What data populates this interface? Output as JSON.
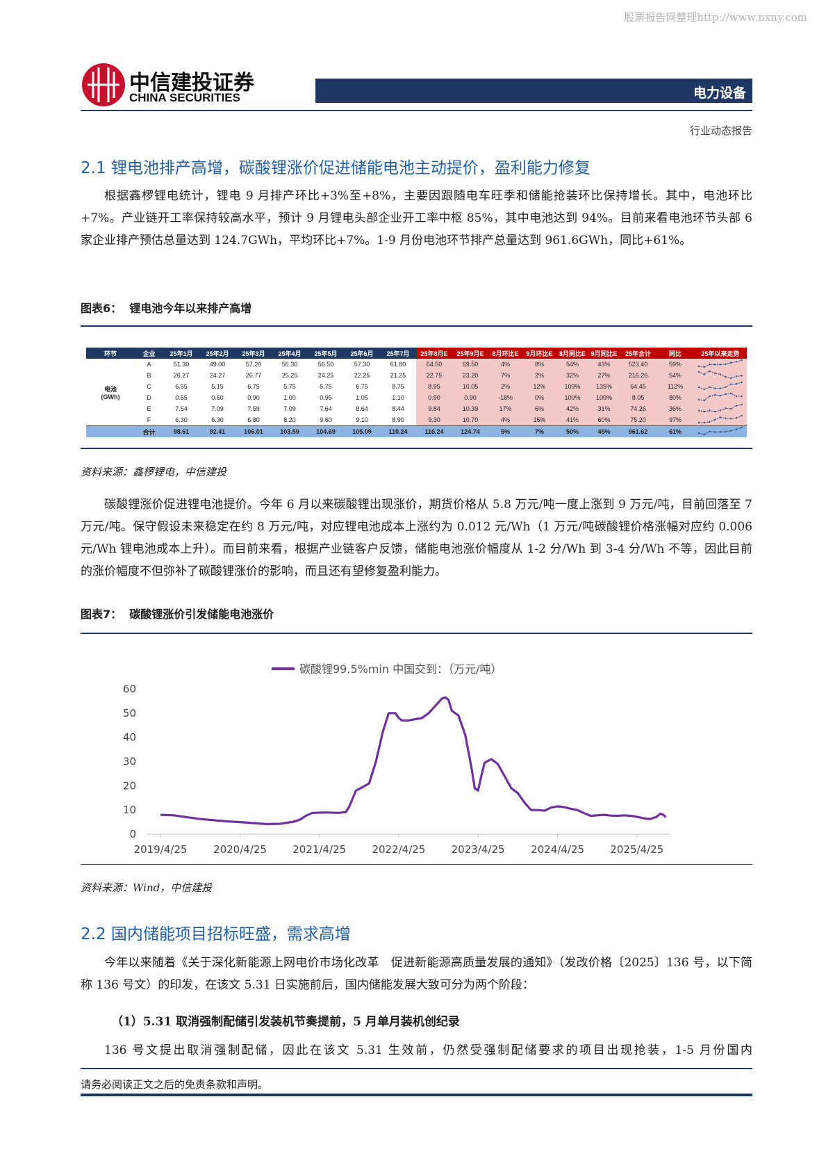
{
  "watermark": "股票报告网整理http://www.nxny.com",
  "header": {
    "logo_cn": "中信建投证券",
    "logo_en": "CHINA SECURITIES",
    "sector": "电力设备",
    "report_type": "行业动态报告"
  },
  "section1": {
    "title": "2.1 锂电池排产高增，碳酸锂涨价促进储能电池主动提价，盈利能力修复",
    "paragraph": "根据鑫椤锂电统计，锂电 9 月排产环比+3%至+8%，主要因跟随电车旺季和储能抢装环比保持增长。其中，电池环比+7%。产业链开工率保持较高水平，预计 9 月锂电头部企业开工率中枢 85%，其中电池达到 94%。目前来看电池环节头部 6 家企业排产预估总量达到 124.7GWh，平均环比+7%。1-9 月份电池环节排产总量达到 961.6GWh，同比+61%。"
  },
  "figure6": {
    "label": "图表6：",
    "caption": "锂电池今年以来排产高增",
    "source": "资料来源：鑫椤锂电，中信建投",
    "table": {
      "headers": [
        "环节",
        "企业",
        "25年1月",
        "25年2月",
        "25年3月",
        "25年4月",
        "25年5月",
        "25年6月",
        "25年7月",
        "25年8月E",
        "25年9月E",
        "8月环比E",
        "9月环比E",
        "8月同比E",
        "9月同比E",
        "25年合计",
        "同比",
        "25年以来走势"
      ],
      "segment": [
        "电池",
        "(GWh)"
      ],
      "rows": [
        [
          "A",
          "51.30",
          "49.00",
          "57.20",
          "56.30",
          "56.50",
          "57.30",
          "61.80",
          "64.50",
          "69.50",
          "4%",
          "8%",
          "54%",
          "43%",
          "523.40",
          "59%"
        ],
        [
          "B",
          "26.27",
          "24.27",
          "26.77",
          "25.25",
          "24.25",
          "22.25",
          "21.25",
          "22.75",
          "23.20",
          "7%",
          "2%",
          "32%",
          "27%",
          "216.26",
          "54%"
        ],
        [
          "C",
          "6.55",
          "5.15",
          "6.75",
          "5.75",
          "5.75",
          "6.75",
          "8.75",
          "8.95",
          "10.05",
          "2%",
          "12%",
          "109%",
          "135%",
          "64.45",
          "112%"
        ],
        [
          "D",
          "0.65",
          "0.60",
          "0.90",
          "1.00",
          "0.95",
          "1.05",
          "1.10",
          "0.90",
          "0.90",
          "-18%",
          "0%",
          "100%",
          "100%",
          "8.05",
          "80%"
        ],
        [
          "E",
          "7.54",
          "7.09",
          "7.59",
          "7.09",
          "7.64",
          "8.64",
          "8.44",
          "9.84",
          "10.39",
          "17%",
          "6%",
          "42%",
          "31%",
          "74.26",
          "36%"
        ],
        [
          "F",
          "6.30",
          "6.30",
          "6.80",
          "8.20",
          "9.60",
          "9.10",
          "8.90",
          "9.30",
          "10.70",
          "4%",
          "15%",
          "41%",
          "60%",
          "75.20",
          "97%"
        ],
        [
          "合计",
          "98.61",
          "92.41",
          "106.01",
          "103.59",
          "104.69",
          "105.09",
          "110.24",
          "116.24",
          "124.74",
          "5%",
          "7%",
          "50%",
          "45%",
          "961.62",
          "61%"
        ]
      ]
    }
  },
  "section1b": {
    "paragraph": "碳酸锂涨价促进锂电池提价。今年 6 月以来碳酸锂出现涨价，期货价格从 5.8 万元/吨一度上涨到 9 万元/吨，目前回落至 7 万元/吨。保守假设未来稳定在约 8 万元/吨，对应锂电池成本上涨约为 0.012 元/Wh（1 万元/吨碳酸锂价格涨幅对应约 0.006 元/Wh 锂电池成本上升）。而目前来看，根据产业链客户反馈，储能电池涨价幅度从 1-2 分/Wh 到 3-4 分/Wh 不等，因此目前的涨价幅度不但弥补了碳酸锂涨价的影响，而且还有望修复盈利能力。"
  },
  "figure7": {
    "label": "图表7：",
    "caption": "碳酸锂涨价引发储能电池涨价",
    "source": "资料来源：Wind，中信建投"
  },
  "chart_data": {
    "type": "line",
    "x": [
      "2019/4/25",
      "2019/6/25",
      "2019/8/25",
      "2019/10/25",
      "2019/12/25",
      "2020/2/25",
      "2020/4/25",
      "2020/6/25",
      "2020/8/25",
      "2020/10/25",
      "2020/12/25",
      "2021/1/25",
      "2021/2/25",
      "2021/3/25",
      "2021/5/25",
      "2021/7/25",
      "2021/8/25",
      "2021/9/10",
      "2021/10/10",
      "2021/11/10",
      "2021/12/10",
      "2022/1/10",
      "2022/2/10",
      "2022/3/10",
      "2022/4/10",
      "2022/4/25",
      "2022/5/10",
      "2022/6/10",
      "2022/7/10",
      "2022/8/10",
      "2022/9/10",
      "2022/10/10",
      "2022/11/10",
      "2022/11/25",
      "2022/12/10",
      "2022/12/25",
      "2023/1/25",
      "2023/2/25",
      "2023/3/25",
      "2023/4/10",
      "2023/4/25",
      "2023/5/10",
      "2023/5/25",
      "2023/6/25",
      "2023/7/25",
      "2023/8/25",
      "2023/9/25",
      "2023/10/25",
      "2023/11/25",
      "2023/12/25",
      "2024/1/25",
      "2024/2/25",
      "2024/3/25",
      "2024/4/25",
      "2024/5/25",
      "2024/6/25",
      "2024/7/25",
      "2024/8/25",
      "2024/9/25",
      "2024/10/25",
      "2024/11/25",
      "2024/12/25",
      "2025/1/25",
      "2025/2/25",
      "2025/3/25",
      "2025/4/25",
      "2025/5/25",
      "2025/6/25",
      "2025/7/25",
      "2025/8/10",
      "2025/8/25",
      "2025/9/5"
    ],
    "series": [
      {
        "name": "碳酸锂99.5%min 中国交到：（万元/吨）",
        "color": "#7030a0",
        "values": [
          8,
          7.8,
          7,
          6.3,
          5.8,
          5.3,
          5,
          4.6,
          4.2,
          4.3,
          5.1,
          6,
          7.8,
          8.8,
          9,
          8.8,
          9.2,
          11.5,
          18,
          19.5,
          21,
          30,
          42,
          50,
          50,
          48,
          47,
          47,
          47.5,
          48,
          50,
          53,
          56,
          56.5,
          55.5,
          51,
          49,
          41,
          28,
          19,
          18,
          24,
          29.5,
          31,
          29,
          24,
          19,
          17,
          13,
          10,
          10,
          9.7,
          11,
          11.5,
          11.2,
          10.5,
          10,
          8.7,
          7.6,
          7.8,
          8,
          7.7,
          7.6,
          7.8,
          7.6,
          7.2,
          6.6,
          6.3,
          7.2,
          8.5,
          8,
          7
        ]
      }
    ],
    "xlim": [
      "2019/4/25",
      "2025/9/10"
    ],
    "xticks": [
      "2019/4/25",
      "2020/4/25",
      "2021/4/25",
      "2022/4/25",
      "2023/4/25",
      "2024/4/25",
      "2025/4/25"
    ],
    "ylim": [
      0,
      60
    ],
    "yticks": [
      0,
      10,
      20,
      30,
      40,
      50,
      60
    ],
    "grid": false,
    "legend": "top"
  },
  "section2": {
    "title": "2.2 国内储能项目招标旺盛，需求高增",
    "paragraph": "今年以来随着《关于深化新能源上网电价市场化改革　促进新能源高质量发展的通知》（发改价格〔2025〕136 号，以下简称 136 号文）的印发，在该文 5.31 日实施前后，国内储能发展大致可分为两个阶段：",
    "subheading": "（1）5.31 取消强制配储引发装机节奏提前，5 月单月装机创纪录",
    "paragraph2": "136 号文提出取消强制配储，因此在该文 5.31 生效前，仍然受强制配储要求的项目出现抢装，1-5 月份国内"
  },
  "footer": {
    "disclaimer": "请务必阅读正文之后的免责条款和声明。"
  }
}
